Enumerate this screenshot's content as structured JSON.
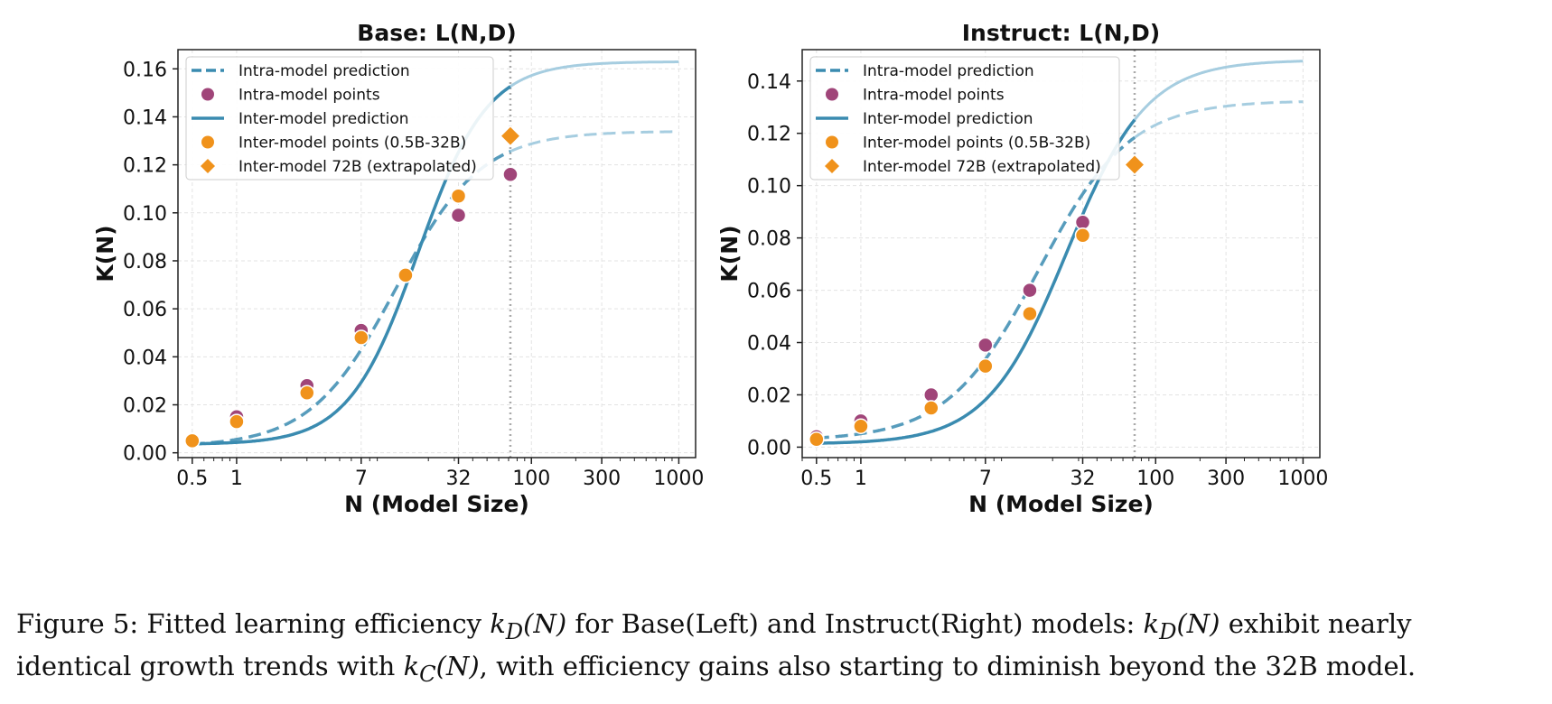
{
  "chart_data": [
    {
      "type": "line",
      "title": "Base: L(N,D)",
      "xlabel": "N (Model Size)",
      "ylabel": "K(N)",
      "xscale": "log",
      "xlim": [
        0.4,
        1300
      ],
      "ylim": [
        -0.002,
        0.168
      ],
      "xticks": [
        0.5,
        1,
        7,
        32,
        100,
        300,
        1000
      ],
      "xtick_labels": [
        "0.5",
        "1",
        "7",
        "32",
        "100",
        "300",
        "1000"
      ],
      "yticks": [
        0.0,
        0.02,
        0.04,
        0.06,
        0.08,
        0.1,
        0.12,
        0.14,
        0.16
      ],
      "ytick_labels": [
        "0.00",
        "0.02",
        "0.04",
        "0.06",
        "0.08",
        "0.10",
        "0.12",
        "0.14",
        "0.16"
      ],
      "grid": true,
      "legend_position": "top-left",
      "vline_x": 72,
      "intra_fit": {
        "k0": 0.0025,
        "kmax": 0.134,
        "n0": 12,
        "s": 1.5
      },
      "inter_fit": {
        "k0": 0.0035,
        "kmax": 0.163,
        "n0": 17,
        "s": 1.85
      },
      "intra_points": {
        "x": [
          0.5,
          1,
          3,
          7,
          14,
          32,
          72
        ],
        "y": [
          0.005,
          0.015,
          0.028,
          0.051,
          0.074,
          0.099,
          0.116
        ]
      },
      "inter_points": {
        "x": [
          0.5,
          1,
          3,
          7,
          14,
          32
        ],
        "y": [
          0.005,
          0.013,
          0.025,
          0.048,
          0.074,
          0.107
        ]
      },
      "extrapolated_point": {
        "x": 72,
        "y": 0.132
      },
      "legend": [
        "Intra-model prediction",
        "Intra-model points",
        "Inter-model prediction",
        "Inter-model points (0.5B-32B)",
        "Inter-model 72B (extrapolated)"
      ]
    },
    {
      "type": "line",
      "title": "Instruct: L(N,D)",
      "xlabel": "N (Model Size)",
      "ylabel": "K(N)",
      "xscale": "log",
      "xlim": [
        0.4,
        1300
      ],
      "ylim": [
        -0.004,
        0.152
      ],
      "xticks": [
        0.5,
        1,
        7,
        32,
        100,
        300,
        1000
      ],
      "xtick_labels": [
        "0.5",
        "1",
        "7",
        "32",
        "100",
        "300",
        "1000"
      ],
      "yticks": [
        0.0,
        0.02,
        0.04,
        0.06,
        0.08,
        0.1,
        0.12,
        0.14
      ],
      "ytick_labels": [
        "0.00",
        "0.02",
        "0.04",
        "0.06",
        "0.08",
        "0.10",
        "0.12",
        "0.14"
      ],
      "grid": true,
      "legend_position": "top-left",
      "vline_x": 72,
      "intra_fit": {
        "k0": 0.0025,
        "kmax": 0.1325,
        "n0": 16,
        "s": 1.4
      },
      "inter_fit": {
        "k0": 0.0012,
        "kmax": 0.148,
        "n0": 25,
        "s": 1.6
      },
      "intra_points": {
        "x": [
          0.5,
          1,
          3,
          7,
          14,
          32
        ],
        "y": [
          0.004,
          0.01,
          0.02,
          0.039,
          0.06,
          0.086
        ]
      },
      "inter_points": {
        "x": [
          0.5,
          1,
          3,
          7,
          14,
          32
        ],
        "y": [
          0.003,
          0.008,
          0.015,
          0.031,
          0.051,
          0.081
        ]
      },
      "extrapolated_point": {
        "x": 72,
        "y": 0.108
      },
      "legend": [
        "Intra-model prediction",
        "Intra-model points",
        "Inter-model prediction",
        "Inter-model points (0.5B-32B)",
        "Inter-model 72B (extrapolated)"
      ]
    }
  ],
  "colors": {
    "prediction": "#3a8bb0",
    "prediction_light": "#a6cde0",
    "intra_points": "#a04579",
    "inter_points": "#f0921b",
    "grid": "#e3e3e3",
    "vline": "#aaaaaa"
  },
  "caption": {
    "fig_label": "Figure 5: Fitted learning efficiency ",
    "math_kd": "k",
    "sub_d": "D",
    "arg_n": "(N)",
    "part2": " for Base(Left) and Instruct(Right) models: ",
    "part3": " exhibit nearly",
    "part4": "identical growth trends with ",
    "sub_c": "C",
    "part5": ", with efficiency gains also starting to diminish beyond the 32B model."
  }
}
